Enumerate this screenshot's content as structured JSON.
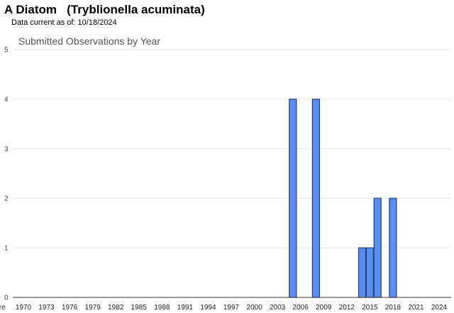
{
  "header": {
    "title": "A Diatom   (Tryblionella acuminata)",
    "updated": "Data current as of: 10/18/2024"
  },
  "chart_data": {
    "type": "bar",
    "title": "Submitted Observations by Year",
    "xlabel": "",
    "ylabel": "",
    "ylim": [
      0,
      5
    ],
    "yticks": [
      0,
      1,
      2,
      3,
      4,
      5
    ],
    "grid": true,
    "x_tick_labels": [
      "pre",
      "1970",
      "1973",
      "1976",
      "1979",
      "1982",
      "1985",
      "1988",
      "1991",
      "1994",
      "1997",
      "2000",
      "2003",
      "2006",
      "2009",
      "2012",
      "2015",
      "2018",
      "2021",
      "2024"
    ],
    "categories": [
      "2005",
      "2008",
      "2014",
      "2015",
      "2016",
      "2018"
    ],
    "values": [
      4,
      4,
      1,
      1,
      2,
      2
    ],
    "colors": {
      "bar_fill": "#5b8def",
      "bar_stroke": "#1f3e7a",
      "grid": "#e3e3e3",
      "axis": "#333333"
    }
  }
}
